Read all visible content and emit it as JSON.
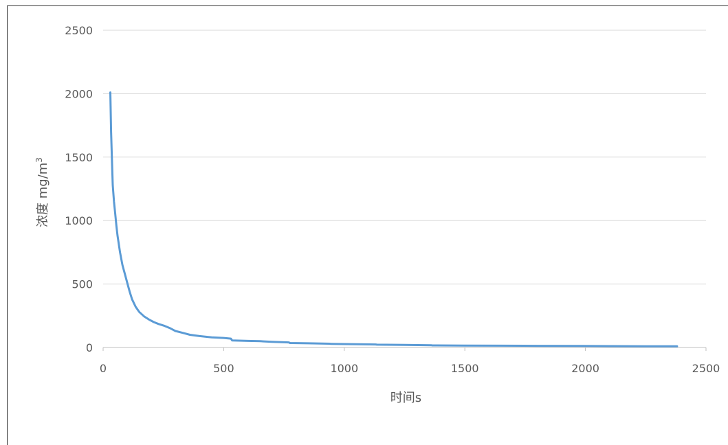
{
  "chart_data": {
    "type": "line",
    "title": "",
    "xlabel": "时间s",
    "ylabel": "浓度 mg/m3",
    "xlim": [
      0,
      2500
    ],
    "ylim": [
      0,
      2500
    ],
    "x_ticks": [
      "0",
      "500",
      "1000",
      "1500",
      "2000",
      "2500"
    ],
    "y_ticks": [
      "0",
      "500",
      "1000",
      "1500",
      "2000",
      "2500"
    ],
    "grid": true,
    "legend": "none",
    "series": [
      {
        "color": "#5B9BD5",
        "x": [
          30,
          33,
          37,
          40,
          45,
          50,
          55,
          60,
          70,
          80,
          90,
          100,
          110,
          120,
          135,
          150,
          170,
          190,
          210,
          230,
          255,
          280,
          300,
          330,
          360,
          400,
          450,
          500,
          530,
          535,
          600,
          650,
          700,
          770,
          775,
          850,
          940,
          945,
          1050,
          1130,
          1135,
          1250,
          1360,
          1365,
          1500,
          1650,
          1800,
          1980,
          2100,
          2250,
          2380
        ],
        "y": [
          2010,
          1700,
          1450,
          1280,
          1150,
          1060,
          960,
          880,
          750,
          650,
          580,
          510,
          440,
          380,
          320,
          280,
          245,
          220,
          200,
          185,
          170,
          150,
          130,
          115,
          100,
          90,
          80,
          75,
          70,
          55,
          52,
          50,
          45,
          40,
          35,
          33,
          30,
          28,
          26,
          24,
          22,
          20,
          18,
          16,
          15,
          14,
          13,
          12,
          11,
          10,
          9
        ]
      }
    ]
  }
}
